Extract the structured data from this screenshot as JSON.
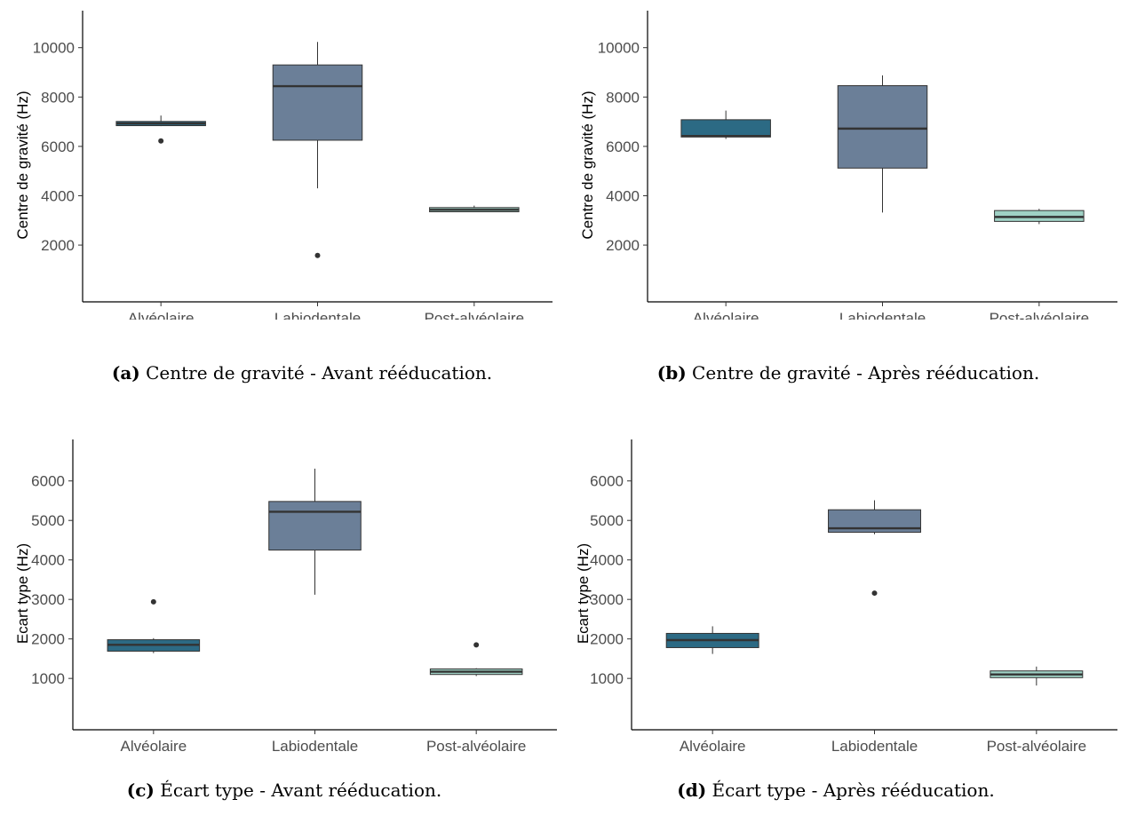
{
  "colors": {
    "Alvéolaire": "#2c6a84",
    "Labiodentale": "#6b7f98",
    "Post-alvéolaire": "#9fd1c5",
    "outline": "#333333",
    "median": "#333333"
  },
  "chart_data": [
    {
      "type": "boxplot",
      "caption_label": "(a)",
      "caption_text": " Centre de gravité - Avant rééducation.",
      "ylabel": "Centre de gravité (Hz)",
      "ylim": [
        -300,
        11500
      ],
      "yticks": [
        2000,
        4000,
        6000,
        8000,
        10000
      ],
      "tick_labels": [
        "2000",
        "4000",
        "6000",
        "8000",
        "10000"
      ],
      "categories": [
        "Alvéolaire",
        "Labiodentale",
        "Post-alvéolaire"
      ],
      "boxes": [
        {
          "whisker_low": 6820,
          "q1": 6840,
          "median": 6930,
          "q3": 7010,
          "whisker_high": 7250,
          "outliers": [
            6220
          ]
        },
        {
          "whisker_low": 4300,
          "q1": 6250,
          "median": 8440,
          "q3": 9300,
          "whisker_high": 10230,
          "outliers": [
            1580
          ]
        },
        {
          "whisker_low": 3340,
          "q1": 3350,
          "median": 3430,
          "q3": 3520,
          "whisker_high": 3600,
          "outliers": []
        }
      ]
    },
    {
      "type": "boxplot",
      "caption_label": "(b)",
      "caption_text": " Centre de gravité - Après rééducation.",
      "ylabel": "Centre de gravité (Hz)",
      "ylim": [
        -300,
        11500
      ],
      "yticks": [
        2000,
        4000,
        6000,
        8000,
        10000
      ],
      "tick_labels": [
        "2000",
        "4000",
        "6000",
        "8000",
        "10000"
      ],
      "categories": [
        "Alvéolaire",
        "Labiodentale",
        "Post-alvéolaire"
      ],
      "boxes": [
        {
          "whisker_low": 6300,
          "q1": 6380,
          "median": 6420,
          "q3": 7080,
          "whisker_high": 7450,
          "outliers": []
        },
        {
          "whisker_low": 3320,
          "q1": 5120,
          "median": 6720,
          "q3": 8460,
          "whisker_high": 8880,
          "outliers": []
        },
        {
          "whisker_low": 2850,
          "q1": 2960,
          "median": 3140,
          "q3": 3400,
          "whisker_high": 3470,
          "outliers": []
        }
      ]
    },
    {
      "type": "boxplot",
      "caption_label": "(c)",
      "caption_text": " Écart type - Avant rééducation.",
      "ylabel": "Ecart type (Hz)",
      "ylim": [
        -300,
        7050
      ],
      "yticks": [
        1000,
        2000,
        3000,
        4000,
        5000,
        6000
      ],
      "tick_labels": [
        "1000",
        "2000",
        "3000",
        "4000",
        "5000",
        "6000"
      ],
      "categories": [
        "Alvéolaire",
        "Labiodentale",
        "Post-alvéolaire"
      ],
      "boxes": [
        {
          "whisker_low": 1640,
          "q1": 1690,
          "median": 1850,
          "q3": 1980,
          "whisker_high": 2020,
          "outliers": [
            2940
          ]
        },
        {
          "whisker_low": 3120,
          "q1": 4250,
          "median": 5220,
          "q3": 5480,
          "whisker_high": 6310,
          "outliers": []
        },
        {
          "whisker_low": 1060,
          "q1": 1100,
          "median": 1170,
          "q3": 1240,
          "whisker_high": 1260,
          "outliers": [
            1850
          ]
        }
      ]
    },
    {
      "type": "boxplot",
      "caption_label": "(d)",
      "caption_text": " Écart type - Après rééducation.",
      "ylabel": "Ecart type (Hz)",
      "ylim": [
        -300,
        7050
      ],
      "yticks": [
        1000,
        2000,
        3000,
        4000,
        5000,
        6000
      ],
      "tick_labels": [
        "1000",
        "2000",
        "3000",
        "4000",
        "5000",
        "6000"
      ],
      "categories": [
        "Alvéolaire",
        "Labiodentale",
        "Post-alvéolaire"
      ],
      "boxes": [
        {
          "whisker_low": 1620,
          "q1": 1780,
          "median": 1970,
          "q3": 2140,
          "whisker_high": 2320,
          "outliers": []
        },
        {
          "whisker_low": 4650,
          "q1": 4700,
          "median": 4800,
          "q3": 5270,
          "whisker_high": 5510,
          "outliers": [
            3160
          ]
        },
        {
          "whisker_low": 820,
          "q1": 1020,
          "median": 1100,
          "q3": 1190,
          "whisker_high": 1300,
          "outliers": []
        }
      ]
    }
  ]
}
